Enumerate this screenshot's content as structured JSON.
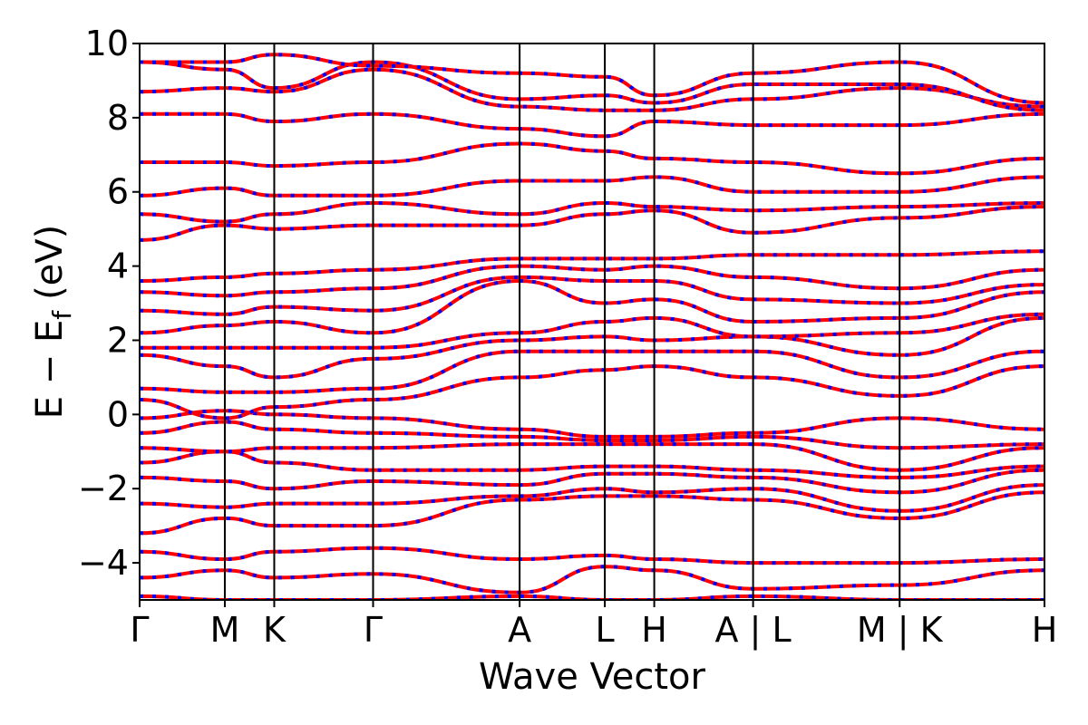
{
  "chart_data": {
    "type": "line",
    "xlabel": "Wave Vector",
    "ylabel_main": "E − E",
    "ylabel_sub": "f",
    "ylabel_unit": "(eV)",
    "ylim": [
      -5,
      10
    ],
    "yticks": [
      -4,
      -2,
      0,
      2,
      4,
      6,
      8,
      10
    ],
    "xlim": [
      0,
      10.62
    ],
    "kpoints": [
      {
        "label": "Γ",
        "x": 0.0
      },
      {
        "label": "M",
        "x": 1.0
      },
      {
        "label": "K",
        "x": 1.58
      },
      {
        "label": "Γ",
        "x": 2.74
      },
      {
        "label": "A",
        "x": 4.46
      },
      {
        "label": "L",
        "x": 5.46
      },
      {
        "label": "H",
        "x": 6.04
      },
      {
        "label": "A | L",
        "x": 7.2
      },
      {
        "label": "M | K",
        "x": 8.92
      },
      {
        "label": "H",
        "x": 10.62
      }
    ],
    "colors": {
      "spin_up": "#ff0000",
      "spin_down": "#0000ff"
    },
    "grid": false,
    "bands": [
      [
        -4.9,
        -5.0,
        -5.0,
        -5.0,
        -4.9,
        -5.0,
        -5.0,
        -4.9,
        -5.0,
        -5.0
      ],
      [
        -4.4,
        -4.2,
        -4.4,
        -4.3,
        -4.8,
        -4.1,
        -4.2,
        -4.7,
        -4.6,
        -4.2
      ],
      [
        -3.7,
        -3.9,
        -3.7,
        -3.6,
        -3.9,
        -3.8,
        -3.9,
        -4.0,
        -4.0,
        -3.9
      ],
      [
        -3.2,
        -2.8,
        -3.0,
        -3.0,
        -2.3,
        -2.2,
        -2.2,
        -2.3,
        -2.8,
        -2.1
      ],
      [
        -2.4,
        -2.5,
        -2.4,
        -2.4,
        -2.2,
        -2.0,
        -2.1,
        -2.0,
        -2.6,
        -1.9
      ],
      [
        -1.7,
        -1.8,
        -2.0,
        -1.8,
        -1.9,
        -1.6,
        -1.6,
        -1.7,
        -2.1,
        -1.5
      ],
      [
        -1.3,
        -1.0,
        -1.3,
        -1.5,
        -1.5,
        -1.4,
        -1.4,
        -1.5,
        -1.7,
        -1.4
      ],
      [
        -0.9,
        -1.0,
        -0.9,
        -0.9,
        -0.8,
        -0.8,
        -0.8,
        -0.8,
        -1.5,
        -0.9
      ],
      [
        -0.5,
        -0.2,
        -0.4,
        -0.5,
        -0.6,
        -0.7,
        -0.7,
        -0.6,
        -0.9,
        -0.8
      ],
      [
        -0.1,
        0.1,
        0.0,
        -0.1,
        -0.4,
        -0.6,
        -0.6,
        -0.5,
        -0.1,
        -0.4
      ],
      [
        0.4,
        -0.1,
        0.2,
        0.4,
        1.0,
        1.2,
        1.3,
        1.0,
        0.5,
        1.3
      ],
      [
        0.7,
        0.6,
        0.6,
        0.7,
        1.7,
        1.7,
        1.7,
        1.7,
        1.0,
        1.7
      ],
      [
        1.6,
        1.3,
        1.0,
        1.5,
        2.0,
        2.1,
        2.0,
        2.1,
        1.6,
        2.6
      ],
      [
        1.8,
        1.8,
        1.8,
        1.8,
        2.2,
        2.5,
        2.6,
        2.1,
        2.2,
        2.7
      ],
      [
        2.2,
        2.4,
        2.5,
        2.2,
        3.6,
        3.0,
        3.1,
        2.5,
        2.6,
        3.3
      ],
      [
        2.8,
        2.7,
        2.9,
        2.8,
        3.7,
        3.6,
        3.6,
        3.1,
        3.0,
        3.5
      ],
      [
        3.3,
        3.2,
        3.3,
        3.4,
        4.0,
        3.9,
        4.0,
        3.7,
        3.4,
        3.9
      ],
      [
        3.6,
        3.7,
        3.8,
        3.9,
        4.2,
        4.2,
        4.2,
        4.3,
        4.3,
        4.4
      ],
      [
        4.7,
        5.1,
        5.0,
        5.1,
        5.1,
        5.4,
        5.5,
        4.9,
        5.3,
        5.6
      ],
      [
        5.4,
        5.2,
        5.4,
        5.7,
        5.4,
        5.7,
        5.6,
        5.5,
        5.6,
        5.7
      ],
      [
        5.9,
        6.1,
        5.9,
        5.9,
        6.3,
        6.3,
        6.4,
        6.0,
        6.0,
        6.4
      ],
      [
        6.8,
        6.8,
        6.7,
        6.8,
        7.3,
        7.1,
        6.9,
        6.8,
        6.5,
        6.9
      ],
      [
        8.1,
        8.1,
        7.9,
        8.1,
        7.7,
        7.5,
        7.9,
        7.8,
        7.8,
        8.1
      ],
      [
        8.7,
        8.8,
        8.7,
        9.3,
        8.3,
        8.2,
        8.2,
        8.5,
        8.8,
        8.3
      ],
      [
        9.5,
        9.3,
        8.8,
        9.5,
        8.5,
        8.6,
        8.4,
        8.9,
        8.9,
        8.2
      ],
      [
        9.5,
        9.5,
        9.7,
        9.4,
        9.2,
        9.1,
        8.6,
        9.2,
        9.5,
        8.4
      ]
    ]
  }
}
